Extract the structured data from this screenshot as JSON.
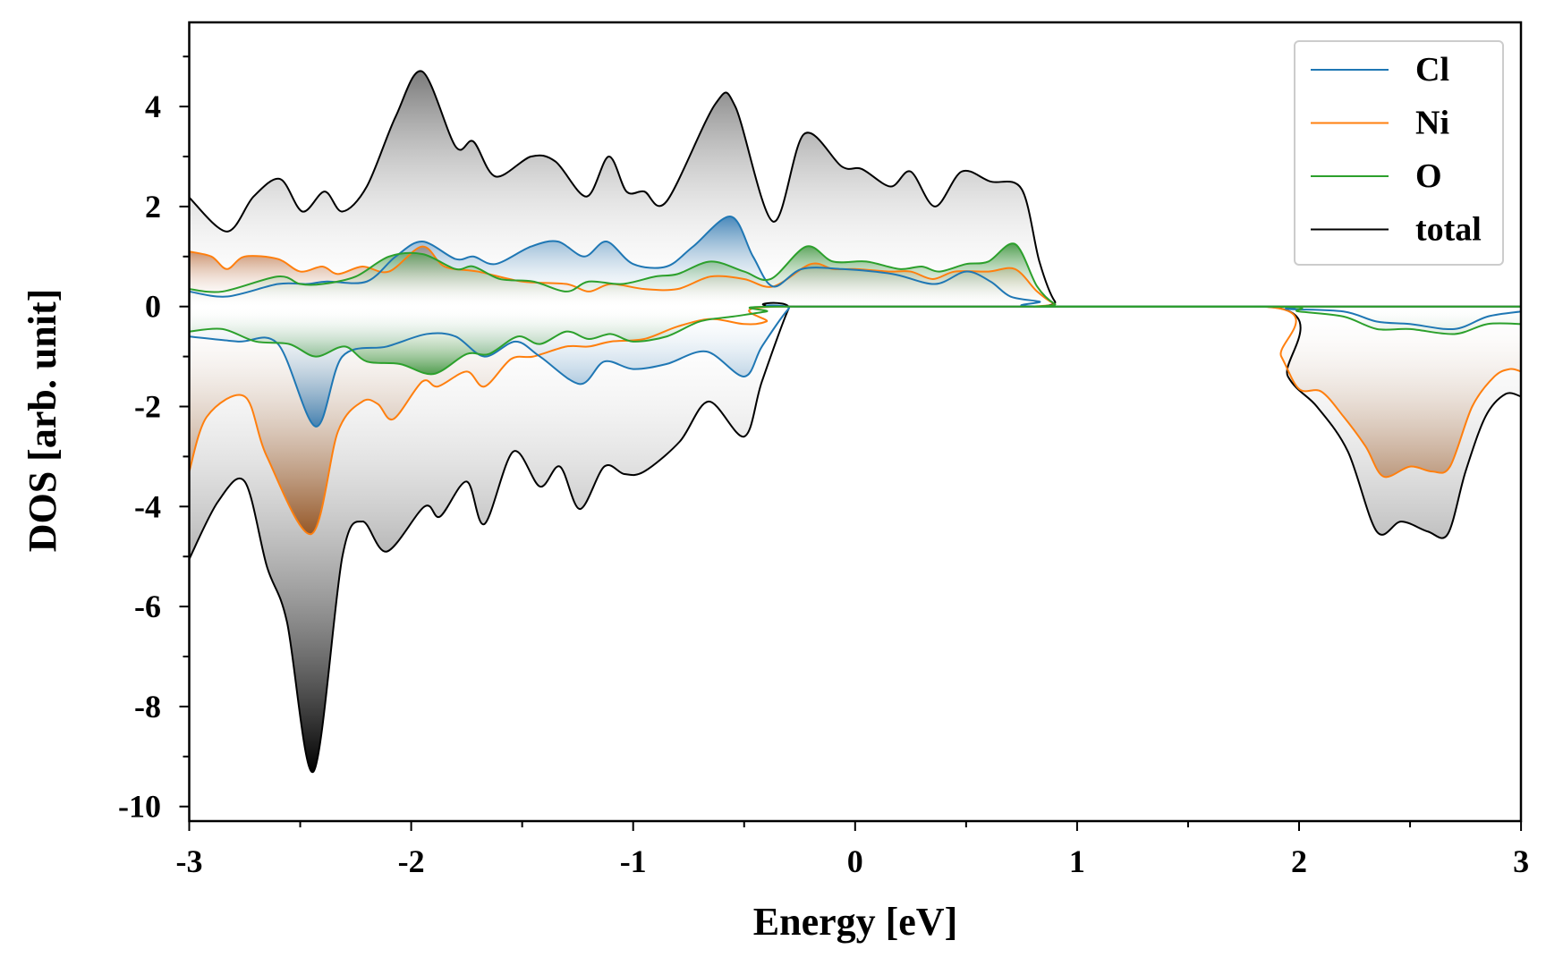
{
  "chart_data": {
    "type": "area",
    "title": "",
    "xlabel": "Energy [eV]",
    "ylabel": "DOS [arb. unit]",
    "xlim": [
      -3,
      3
    ],
    "ylim": [
      -10.3,
      5.68
    ],
    "xticks": [
      -3,
      -2,
      -1,
      0,
      1,
      2,
      3
    ],
    "xtick_labels": [
      "-3",
      "-2",
      "-1",
      "0",
      "1",
      "2",
      "3"
    ],
    "yticks": [
      -10,
      -8,
      -6,
      -4,
      -2,
      0,
      2,
      4
    ],
    "ytick_labels": [
      "-10",
      "-8",
      "-6",
      "-4",
      "-2",
      "0",
      "2",
      "4"
    ],
    "grid": false,
    "legend_position": "top-right",
    "series": [
      {
        "name": "total",
        "color": "#000000",
        "fill_up": "#7a7a7a",
        "fill_down": "#000000",
        "up": [
          [
            -3,
            2.18
          ],
          [
            -2.83,
            1.5
          ],
          [
            -2.71,
            2.2
          ],
          [
            -2.59,
            2.55
          ],
          [
            -2.49,
            1.9
          ],
          [
            -2.39,
            2.3
          ],
          [
            -2.31,
            1.9
          ],
          [
            -2.2,
            2.4
          ],
          [
            -2.07,
            3.8
          ],
          [
            -1.95,
            4.7
          ],
          [
            -1.8,
            3.2
          ],
          [
            -1.72,
            3.3
          ],
          [
            -1.62,
            2.6
          ],
          [
            -1.46,
            3.0
          ],
          [
            -1.35,
            2.9
          ],
          [
            -1.21,
            2.2
          ],
          [
            -1.11,
            3.0
          ],
          [
            -1.03,
            2.3
          ],
          [
            -0.95,
            2.3
          ],
          [
            -0.85,
            2.1
          ],
          [
            -0.63,
            4.05
          ],
          [
            -0.54,
            4.0
          ],
          [
            -0.37,
            1.7
          ],
          [
            -0.23,
            3.45
          ],
          [
            -0.06,
            2.8
          ],
          [
            0.03,
            2.75
          ],
          [
            0.16,
            2.4
          ],
          [
            0.25,
            2.7
          ],
          [
            0.36,
            2.0
          ],
          [
            0.48,
            2.7
          ],
          [
            0.61,
            2.5
          ],
          [
            0.75,
            2.35
          ],
          [
            0.83,
            0.9
          ],
          [
            0.9,
            0.1
          ],
          [
            0.97,
            0
          ],
          [
            3,
            0
          ]
        ],
        "down": [
          [
            -3,
            -5.05
          ],
          [
            -2.87,
            -3.9
          ],
          [
            -2.75,
            -3.5
          ],
          [
            -2.65,
            -5.2
          ],
          [
            -2.56,
            -6.3
          ],
          [
            -2.44,
            -9.3
          ],
          [
            -2.31,
            -5.0
          ],
          [
            -2.22,
            -4.3
          ],
          [
            -2.11,
            -4.9
          ],
          [
            -1.94,
            -4.0
          ],
          [
            -1.87,
            -4.2
          ],
          [
            -1.75,
            -3.5
          ],
          [
            -1.67,
            -4.35
          ],
          [
            -1.54,
            -2.9
          ],
          [
            -1.42,
            -3.6
          ],
          [
            -1.33,
            -3.2
          ],
          [
            -1.24,
            -4.05
          ],
          [
            -1.13,
            -3.2
          ],
          [
            -1.04,
            -3.35
          ],
          [
            -0.95,
            -3.3
          ],
          [
            -0.79,
            -2.7
          ],
          [
            -0.66,
            -1.9
          ],
          [
            -0.5,
            -2.6
          ],
          [
            -0.42,
            -1.5
          ],
          [
            -0.3,
            -0.05
          ],
          [
            -0.26,
            0
          ],
          [
            1.82,
            0
          ],
          [
            1.95,
            -1.4
          ],
          [
            2.08,
            -2.0
          ],
          [
            2.22,
            -2.9
          ],
          [
            2.35,
            -4.5
          ],
          [
            2.46,
            -4.3
          ],
          [
            2.58,
            -4.5
          ],
          [
            2.67,
            -4.55
          ],
          [
            2.75,
            -3.3
          ],
          [
            2.84,
            -2.2
          ],
          [
            2.93,
            -1.75
          ],
          [
            3,
            -1.8
          ]
        ]
      },
      {
        "name": "Ni",
        "color": "#ff7f0e",
        "fill_up": "#b5602a",
        "fill_down": "#8b3d00",
        "up": [
          [
            -3,
            1.1
          ],
          [
            -2.9,
            1.0
          ],
          [
            -2.83,
            0.75
          ],
          [
            -2.75,
            1.0
          ],
          [
            -2.6,
            0.95
          ],
          [
            -2.5,
            0.7
          ],
          [
            -2.4,
            0.8
          ],
          [
            -2.33,
            0.65
          ],
          [
            -2.22,
            0.8
          ],
          [
            -2.1,
            0.7
          ],
          [
            -1.95,
            1.2
          ],
          [
            -1.85,
            0.8
          ],
          [
            -1.7,
            0.7
          ],
          [
            -1.5,
            0.5
          ],
          [
            -1.3,
            0.45
          ],
          [
            -1.2,
            0.3
          ],
          [
            -1.1,
            0.45
          ],
          [
            -0.95,
            0.35
          ],
          [
            -0.8,
            0.35
          ],
          [
            -0.65,
            0.6
          ],
          [
            -0.5,
            0.55
          ],
          [
            -0.37,
            0.4
          ],
          [
            -0.2,
            0.85
          ],
          [
            -0.1,
            0.75
          ],
          [
            0,
            0.75
          ],
          [
            0.15,
            0.7
          ],
          [
            0.25,
            0.7
          ],
          [
            0.35,
            0.55
          ],
          [
            0.45,
            0.7
          ],
          [
            0.6,
            0.7
          ],
          [
            0.72,
            0.75
          ],
          [
            0.82,
            0.3
          ],
          [
            0.9,
            0.05
          ],
          [
            0.97,
            0
          ],
          [
            3,
            0
          ]
        ],
        "down": [
          [
            -3,
            -3.3
          ],
          [
            -2.92,
            -2.2
          ],
          [
            -2.75,
            -1.8
          ],
          [
            -2.65,
            -3.0
          ],
          [
            -2.45,
            -4.55
          ],
          [
            -2.33,
            -2.5
          ],
          [
            -2.22,
            -1.9
          ],
          [
            -2.15,
            -1.95
          ],
          [
            -2.08,
            -2.25
          ],
          [
            -1.95,
            -1.5
          ],
          [
            -1.88,
            -1.6
          ],
          [
            -1.75,
            -1.3
          ],
          [
            -1.67,
            -1.6
          ],
          [
            -1.55,
            -1.05
          ],
          [
            -1.45,
            -1.0
          ],
          [
            -1.3,
            -0.8
          ],
          [
            -1.2,
            -0.8
          ],
          [
            -1.1,
            -0.7
          ],
          [
            -0.95,
            -0.65
          ],
          [
            -0.8,
            -0.4
          ],
          [
            -0.65,
            -0.25
          ],
          [
            -0.5,
            -0.35
          ],
          [
            -0.4,
            -0.3
          ],
          [
            -0.3,
            0
          ],
          [
            1.8,
            0
          ],
          [
            1.92,
            -1.0
          ],
          [
            2.0,
            -1.65
          ],
          [
            2.1,
            -1.7
          ],
          [
            2.2,
            -2.2
          ],
          [
            2.3,
            -2.8
          ],
          [
            2.38,
            -3.4
          ],
          [
            2.5,
            -3.2
          ],
          [
            2.6,
            -3.3
          ],
          [
            2.68,
            -3.2
          ],
          [
            2.78,
            -2.0
          ],
          [
            2.88,
            -1.4
          ],
          [
            2.95,
            -1.25
          ],
          [
            3,
            -1.3
          ]
        ]
      },
      {
        "name": "Cl",
        "color": "#1f77b4",
        "fill_up": "#1f6fae",
        "fill_down": "#1f6fae",
        "up": [
          [
            -3,
            0.3
          ],
          [
            -2.83,
            0.2
          ],
          [
            -2.6,
            0.45
          ],
          [
            -2.47,
            0.45
          ],
          [
            -2.38,
            0.5
          ],
          [
            -2.2,
            0.5
          ],
          [
            -2.07,
            1.0
          ],
          [
            -1.95,
            1.3
          ],
          [
            -1.8,
            0.95
          ],
          [
            -1.72,
            1.0
          ],
          [
            -1.62,
            0.85
          ],
          [
            -1.46,
            1.2
          ],
          [
            -1.34,
            1.3
          ],
          [
            -1.22,
            1.0
          ],
          [
            -1.12,
            1.3
          ],
          [
            -1.0,
            0.85
          ],
          [
            -0.85,
            0.8
          ],
          [
            -0.73,
            1.2
          ],
          [
            -0.56,
            1.8
          ],
          [
            -0.46,
            1.0
          ],
          [
            -0.37,
            0.4
          ],
          [
            -0.24,
            0.75
          ],
          [
            -0.06,
            0.75
          ],
          [
            0.17,
            0.65
          ],
          [
            0.36,
            0.45
          ],
          [
            0.5,
            0.7
          ],
          [
            0.61,
            0.5
          ],
          [
            0.7,
            0.2
          ],
          [
            0.83,
            0.1
          ],
          [
            0.92,
            0
          ],
          [
            3,
            0
          ]
        ],
        "down": [
          [
            -3,
            -0.6
          ],
          [
            -2.78,
            -0.7
          ],
          [
            -2.6,
            -0.75
          ],
          [
            -2.43,
            -2.4
          ],
          [
            -2.31,
            -1.0
          ],
          [
            -2.11,
            -0.8
          ],
          [
            -1.93,
            -0.55
          ],
          [
            -1.8,
            -0.6
          ],
          [
            -1.67,
            -1.0
          ],
          [
            -1.53,
            -0.7
          ],
          [
            -1.42,
            -1.0
          ],
          [
            -1.24,
            -1.55
          ],
          [
            -1.13,
            -1.1
          ],
          [
            -1.0,
            -1.25
          ],
          [
            -0.85,
            -1.15
          ],
          [
            -0.67,
            -0.9
          ],
          [
            -0.5,
            -1.4
          ],
          [
            -0.42,
            -0.8
          ],
          [
            -0.3,
            -0.05
          ],
          [
            -0.24,
            0
          ],
          [
            1.8,
            0
          ],
          [
            1.95,
            -0.05
          ],
          [
            2.2,
            -0.1
          ],
          [
            2.35,
            -0.3
          ],
          [
            2.5,
            -0.35
          ],
          [
            2.7,
            -0.45
          ],
          [
            2.85,
            -0.2
          ],
          [
            3,
            -0.1
          ]
        ]
      },
      {
        "name": "O",
        "color": "#2ca02c",
        "fill_up": "#2a8a2a",
        "fill_down": "#2a8a2a",
        "up": [
          [
            -3,
            0.35
          ],
          [
            -2.85,
            0.3
          ],
          [
            -2.6,
            0.6
          ],
          [
            -2.5,
            0.45
          ],
          [
            -2.4,
            0.45
          ],
          [
            -2.25,
            0.6
          ],
          [
            -2.1,
            1.0
          ],
          [
            -1.95,
            1.05
          ],
          [
            -1.8,
            0.75
          ],
          [
            -1.72,
            0.8
          ],
          [
            -1.6,
            0.55
          ],
          [
            -1.45,
            0.5
          ],
          [
            -1.3,
            0.3
          ],
          [
            -1.2,
            0.5
          ],
          [
            -1.05,
            0.45
          ],
          [
            -0.9,
            0.6
          ],
          [
            -0.8,
            0.65
          ],
          [
            -0.65,
            0.9
          ],
          [
            -0.5,
            0.7
          ],
          [
            -0.38,
            0.55
          ],
          [
            -0.22,
            1.2
          ],
          [
            -0.1,
            0.9
          ],
          [
            0.05,
            0.9
          ],
          [
            0.2,
            0.75
          ],
          [
            0.3,
            0.8
          ],
          [
            0.38,
            0.7
          ],
          [
            0.5,
            0.85
          ],
          [
            0.6,
            0.9
          ],
          [
            0.72,
            1.25
          ],
          [
            0.82,
            0.4
          ],
          [
            0.9,
            0.05
          ],
          [
            0.97,
            0
          ],
          [
            3,
            0
          ]
        ],
        "down": [
          [
            -3,
            -0.5
          ],
          [
            -2.85,
            -0.45
          ],
          [
            -2.7,
            -0.7
          ],
          [
            -2.55,
            -0.75
          ],
          [
            -2.43,
            -1.0
          ],
          [
            -2.3,
            -0.8
          ],
          [
            -2.2,
            -1.1
          ],
          [
            -2.05,
            -1.15
          ],
          [
            -1.9,
            -1.35
          ],
          [
            -1.75,
            -0.95
          ],
          [
            -1.65,
            -0.95
          ],
          [
            -1.52,
            -0.6
          ],
          [
            -1.42,
            -0.75
          ],
          [
            -1.3,
            -0.5
          ],
          [
            -1.2,
            -0.65
          ],
          [
            -1.1,
            -0.55
          ],
          [
            -1.0,
            -0.7
          ],
          [
            -0.85,
            -0.6
          ],
          [
            -0.7,
            -0.3
          ],
          [
            -0.55,
            -0.2
          ],
          [
            -0.4,
            -0.1
          ],
          [
            -0.3,
            0
          ],
          [
            1.8,
            0
          ],
          [
            2.0,
            -0.1
          ],
          [
            2.2,
            -0.2
          ],
          [
            2.35,
            -0.45
          ],
          [
            2.5,
            -0.45
          ],
          [
            2.7,
            -0.55
          ],
          [
            2.85,
            -0.35
          ],
          [
            3,
            -0.35
          ]
        ]
      }
    ],
    "legend": [
      {
        "label": "Cl",
        "color": "#1f77b4"
      },
      {
        "label": "Ni",
        "color": "#ff7f0e"
      },
      {
        "label": "O",
        "color": "#2ca02c"
      },
      {
        "label": "total",
        "color": "#000000"
      }
    ]
  }
}
